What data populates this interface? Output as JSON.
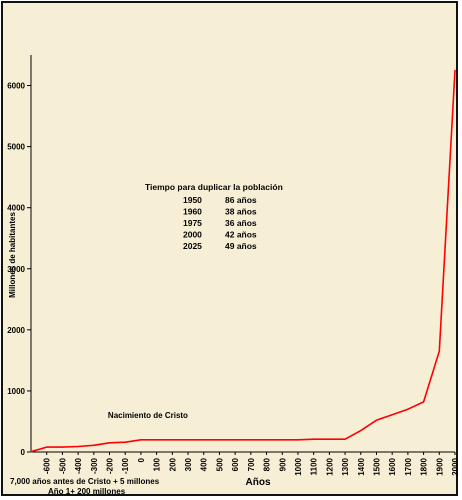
{
  "chart_data": {
    "type": "line",
    "title": "",
    "xlabel": "Años",
    "ylabel": "Millones de habitantes",
    "ylim": [
      0,
      6500
    ],
    "y_ticks": [
      0,
      1000,
      2000,
      3000,
      4000,
      5000,
      6000
    ],
    "x_ticks": [
      "-600",
      "-500",
      "-400",
      "-300",
      "-200",
      "-100",
      "0",
      "100",
      "200",
      "300",
      "400",
      "500",
      "600",
      "700",
      "800",
      "900",
      "1000",
      "1100",
      "1200",
      "1300",
      "1400",
      "1500",
      "1600",
      "1700",
      "1800",
      "1900",
      "2000"
    ],
    "x_extra_labels": [
      "7,000 años antes de Cristo + 5 millones",
      "Año 1+ 200 millones"
    ],
    "series": [
      {
        "color": "#ff0000",
        "points": [
          {
            "x": -700,
            "y": 5
          },
          {
            "x": -600,
            "y": 80
          },
          {
            "x": -500,
            "y": 80
          },
          {
            "x": -400,
            "y": 90
          },
          {
            "x": -300,
            "y": 110
          },
          {
            "x": -200,
            "y": 150
          },
          {
            "x": -100,
            "y": 160
          },
          {
            "x": 0,
            "y": 200
          },
          {
            "x": 100,
            "y": 200
          },
          {
            "x": 200,
            "y": 200
          },
          {
            "x": 300,
            "y": 200
          },
          {
            "x": 400,
            "y": 200
          },
          {
            "x": 500,
            "y": 200
          },
          {
            "x": 600,
            "y": 200
          },
          {
            "x": 700,
            "y": 200
          },
          {
            "x": 800,
            "y": 200
          },
          {
            "x": 900,
            "y": 200
          },
          {
            "x": 1000,
            "y": 200
          },
          {
            "x": 1100,
            "y": 210
          },
          {
            "x": 1200,
            "y": 210
          },
          {
            "x": 1300,
            "y": 210
          },
          {
            "x": 1400,
            "y": 350
          },
          {
            "x": 1500,
            "y": 520
          },
          {
            "x": 1600,
            "y": 610
          },
          {
            "x": 1700,
            "y": 700
          },
          {
            "x": 1800,
            "y": 820
          },
          {
            "x": 1900,
            "y": 1650
          },
          {
            "x": 2000,
            "y": 6250
          }
        ]
      }
    ],
    "info_box": {
      "title": "Tiempo para duplicar la población",
      "rows": [
        {
          "year": "1950",
          "value": "86 años"
        },
        {
          "year": "1960",
          "value": "38 años"
        },
        {
          "year": "1975",
          "value": "36 años"
        },
        {
          "year": "2000",
          "value": "42 años"
        },
        {
          "year": "2025",
          "value": "49 años"
        }
      ]
    },
    "annotations": [
      {
        "text": "Nacimiento de Cristo",
        "x": 0,
        "y": 560
      }
    ],
    "grid": false,
    "legend": "none",
    "colors": {
      "background": "#f6efd6",
      "line": "#ff0000",
      "axis": "#000000"
    }
  }
}
